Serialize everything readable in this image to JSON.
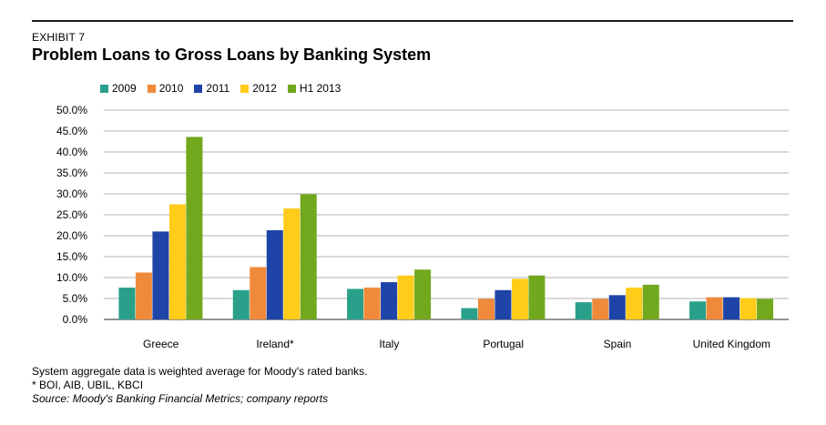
{
  "header": {
    "exhibit": "EXHIBIT 7",
    "title": "Problem Loans to Gross Loans by Banking System"
  },
  "chart_data": {
    "type": "bar",
    "title": "Problem Loans to Gross Loans by Banking System",
    "categories": [
      "Greece",
      "Ireland*",
      "Italy",
      "Portugal",
      "Spain",
      "United Kingdom"
    ],
    "series": [
      {
        "name": "2009",
        "color": "#2aa08a",
        "values": [
          7.6,
          7.0,
          7.3,
          2.7,
          4.1,
          4.3
        ]
      },
      {
        "name": "2010",
        "color": "#f08a3b",
        "values": [
          11.2,
          12.5,
          7.6,
          4.9,
          4.9,
          5.3
        ]
      },
      {
        "name": "2011",
        "color": "#1f44a8",
        "values": [
          21.0,
          21.3,
          8.9,
          7.0,
          5.8,
          5.3
        ]
      },
      {
        "name": "2012",
        "color": "#ffcc1a",
        "values": [
          27.5,
          26.5,
          10.5,
          9.7,
          7.6,
          5.1
        ]
      },
      {
        "name": "H1 2013",
        "color": "#72a81e",
        "values": [
          43.6,
          29.9,
          11.9,
          10.5,
          8.3,
          4.9
        ]
      }
    ],
    "ylim": [
      0,
      50
    ],
    "yticks": [
      "0.0%",
      "5.0%",
      "10.0%",
      "15.0%",
      "20.0%",
      "25.0%",
      "30.0%",
      "35.0%",
      "40.0%",
      "45.0%",
      "50.0%"
    ],
    "xlabel": "",
    "ylabel": "",
    "grid": true,
    "legend_position": "top-left"
  },
  "footnotes": {
    "line1": "System aggregate data is weighted average for Moody's rated banks.",
    "line2": "* BOI, AIB, UBIL, KBCI",
    "source": "Source: Moody's Banking Financial Metrics; company reports"
  }
}
